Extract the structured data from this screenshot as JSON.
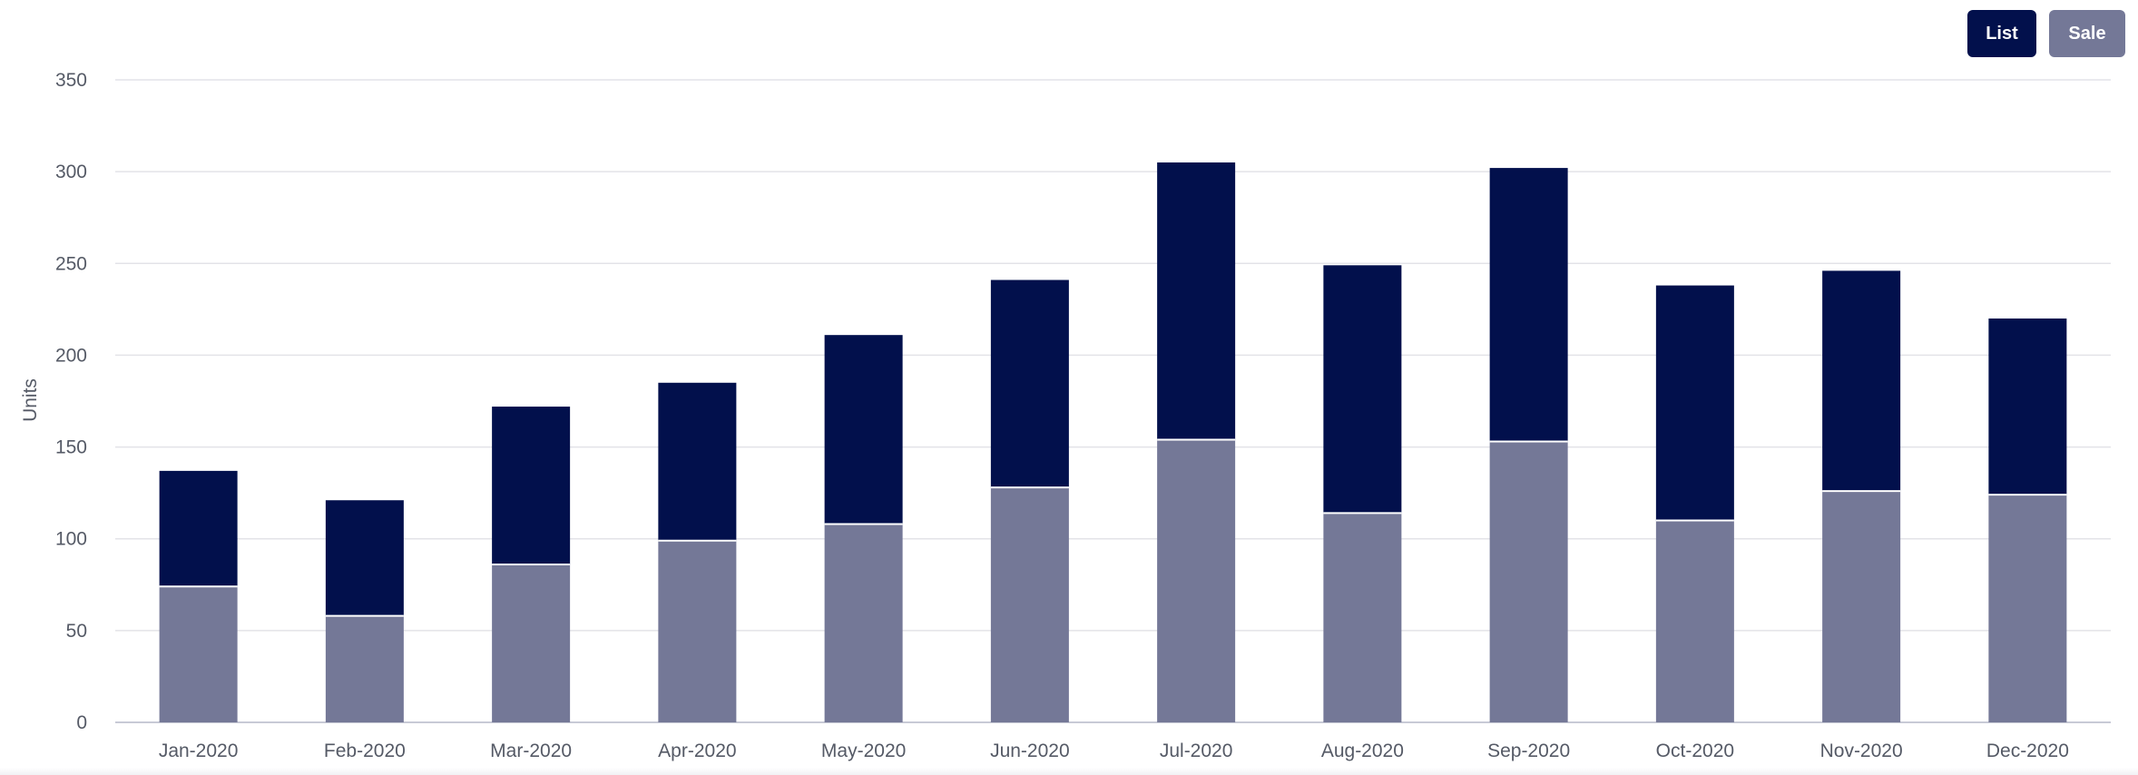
{
  "legend": {
    "items": [
      {
        "label": "List",
        "color": "#02104c"
      },
      {
        "label": "Sale",
        "color": "#747897"
      }
    ]
  },
  "chart_data": {
    "type": "bar",
    "stacked": true,
    "title": "",
    "xlabel": "",
    "ylabel": "Units",
    "ylim": [
      0,
      350
    ],
    "yticks": [
      0,
      50,
      100,
      150,
      200,
      250,
      300,
      350
    ],
    "grid": true,
    "legend_position": "top-right",
    "categories": [
      "Jan-2020",
      "Feb-2020",
      "Mar-2020",
      "Apr-2020",
      "May-2020",
      "Jun-2020",
      "Jul-2020",
      "Aug-2020",
      "Sep-2020",
      "Oct-2020",
      "Nov-2020",
      "Dec-2020"
    ],
    "series": [
      {
        "name": "Sale",
        "color": "#747897",
        "values": [
          74,
          58,
          86,
          99,
          108,
          128,
          154,
          114,
          153,
          110,
          126,
          124
        ]
      },
      {
        "name": "List",
        "color": "#02104c",
        "values": [
          63,
          63,
          86,
          86,
          103,
          113,
          151,
          135,
          149,
          128,
          120,
          96
        ]
      }
    ]
  }
}
